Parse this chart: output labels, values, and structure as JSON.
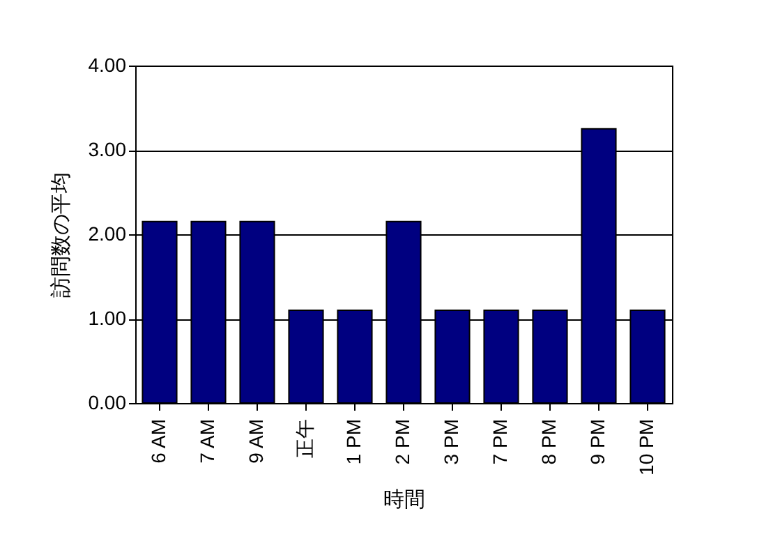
{
  "chart_data": {
    "type": "bar",
    "xlabel": "時間",
    "ylabel": "訪問数の平均",
    "categories": [
      "6 AM",
      "7 AM",
      "9 AM",
      "正午",
      "1 PM",
      "2 PM",
      "3 PM",
      "7 PM",
      "8 PM",
      "9 PM",
      "10 PM"
    ],
    "values": [
      2.15,
      2.15,
      2.15,
      1.1,
      1.1,
      2.15,
      1.1,
      1.1,
      1.1,
      3.25,
      1.1
    ],
    "color": "#000080",
    "ylim": [
      0,
      4
    ],
    "yticks": [
      {
        "value": 0,
        "label": "0.00"
      },
      {
        "value": 1,
        "label": "1.00"
      },
      {
        "value": 2,
        "label": "2.00"
      },
      {
        "value": 3,
        "label": "3.00"
      },
      {
        "value": 4,
        "label": "4.00"
      }
    ],
    "grid": "y"
  }
}
